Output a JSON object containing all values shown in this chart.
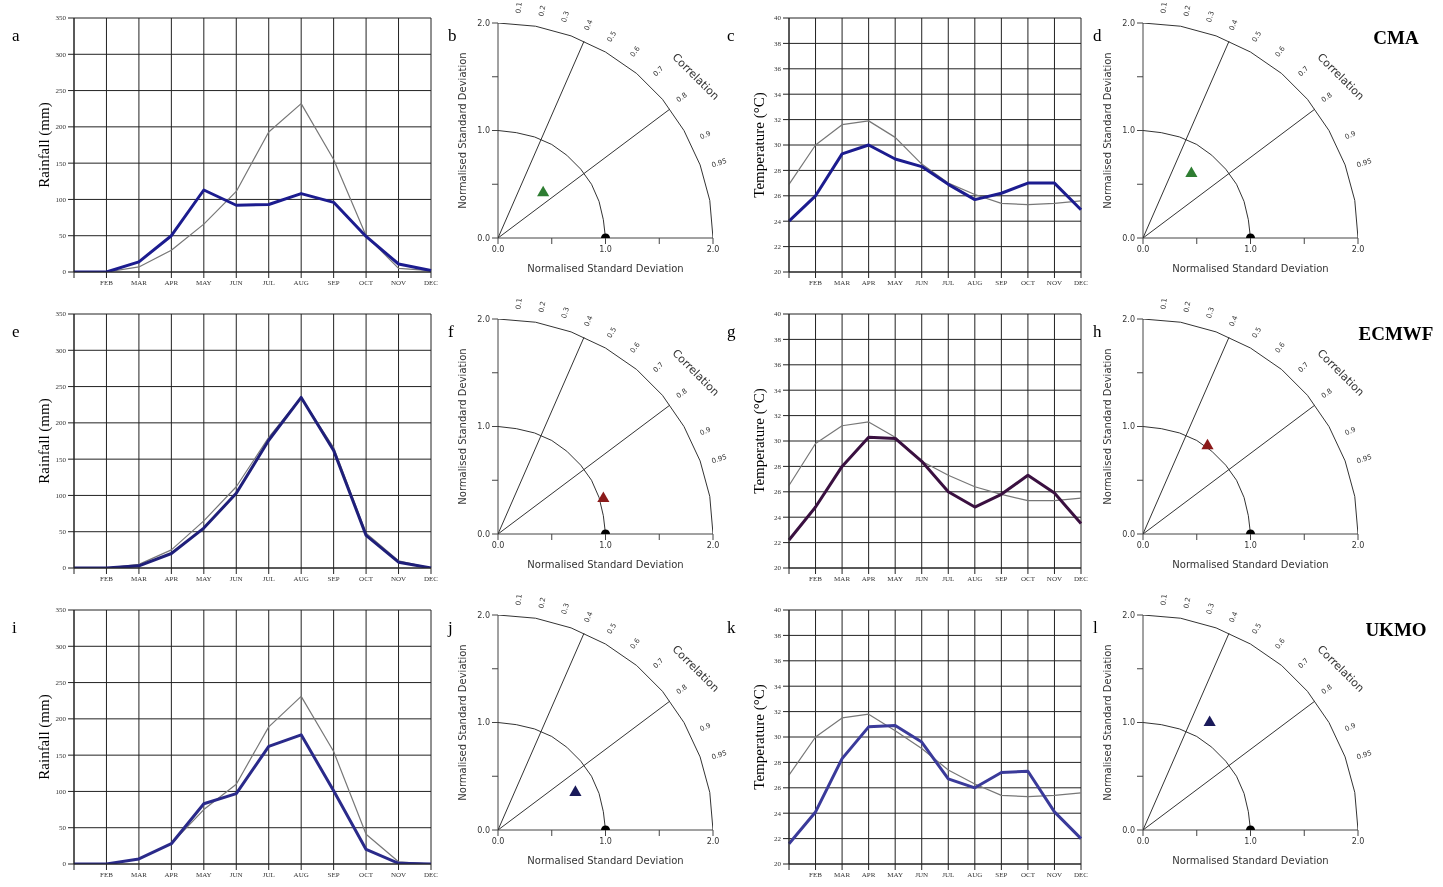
{
  "chart_data": [
    {
      "type": "line",
      "annotations": [
        "a"
      ],
      "ylabel": "Rainfall (mm)",
      "categories": [
        null,
        "FEB",
        "MAR",
        "APR",
        "MAY",
        "JUN",
        "JUL",
        "AUG",
        "SEP",
        "OCT",
        "NOV",
        "DEC"
      ],
      "ylim": [
        0,
        350
      ],
      "yticks": [
        0,
        50,
        100,
        150,
        200,
        250,
        300,
        350
      ],
      "grid": true,
      "series": [
        {
          "color": "#777777",
          "values": [
            0,
            0,
            7,
            30,
            66,
            111,
            193,
            232,
            155,
            50,
            5,
            2
          ]
        },
        {
          "color": "#1c1c8f",
          "values": [
            0,
            0,
            14,
            50,
            113,
            92,
            93,
            108,
            96,
            49,
            11,
            2
          ]
        }
      ]
    },
    {
      "type": "scatter",
      "annotations": [
        "b",
        "0.1",
        "0.2",
        "0.3",
        "0.4",
        "0.5",
        "0.6",
        "0.7",
        "0.8",
        "0.9",
        "0.95",
        "Correlation"
      ],
      "xlabel": "Normalised Standard Deviation",
      "ylabel": "Normalised Standard Deviation",
      "xlim": [
        0,
        2
      ],
      "ylim": [
        0,
        2
      ],
      "xticks": [
        {
          "value": 0,
          "label": "0.0"
        },
        {
          "value": 0.5,
          "label": null
        },
        {
          "value": 1,
          "label": "1.0"
        },
        {
          "value": 1.5,
          "label": null
        },
        {
          "value": 2,
          "label": "2.0"
        }
      ],
      "yticks": [
        {
          "value": 0,
          "label": "0.0"
        },
        {
          "value": 0.5,
          "label": null
        },
        {
          "value": 1,
          "label": "1.0"
        },
        {
          "value": 1.5,
          "label": null
        },
        {
          "value": 2,
          "label": "2.0"
        }
      ],
      "series": [
        {
          "type": "line",
          "color": "#333333",
          "x": [
            0,
            0.8
          ],
          "values": [
            0,
            1.83
          ]
        },
        {
          "type": "line",
          "color": "#333333",
          "x": [
            0,
            1.6
          ],
          "values": [
            0,
            1.2
          ]
        },
        {
          "type": "line",
          "color": "#333333",
          "x": [
            1,
            0.98,
            0.94,
            0.87,
            0.77,
            0.64,
            0.5,
            0.34,
            0.17,
            0
          ],
          "values": [
            0,
            0.17,
            0.34,
            0.5,
            0.64,
            0.77,
            0.87,
            0.94,
            0.98,
            1
          ]
        },
        {
          "type": "line",
          "color": "#333333",
          "x": [
            2,
            1.97,
            1.88,
            1.73,
            1.53,
            1.29,
            1,
            0.68,
            0.35,
            0
          ],
          "values": [
            0,
            0.35,
            0.68,
            1,
            1.29,
            1.53,
            1.73,
            1.88,
            1.97,
            2
          ]
        },
        {
          "color": "#2e7d32",
          "marker": "triangle",
          "x": [
            0.42
          ],
          "values": [
            0.42
          ]
        },
        {
          "color": "#000000",
          "marker": "circle",
          "x": [
            1.0
          ],
          "values": [
            0
          ]
        }
      ]
    },
    {
      "type": "line",
      "annotations": [
        "c"
      ],
      "ylabel": "Temperature (°C)",
      "categories": [
        null,
        "FEB",
        "MAR",
        "APR",
        "MAY",
        "JUN",
        "JUL",
        "AUG",
        "SEP",
        "OCT",
        "NOV",
        "DEC"
      ],
      "ylim": [
        20,
        40
      ],
      "yticks": [
        20,
        22,
        24,
        26,
        28,
        30,
        32,
        34,
        36,
        38,
        40
      ],
      "grid": true,
      "series": [
        {
          "color": "#777777",
          "values": [
            26.9,
            30,
            31.6,
            31.9,
            30.6,
            28.5,
            27,
            26.1,
            25.4,
            25.3,
            25.4,
            25.6
          ]
        },
        {
          "color": "#1c1c8f",
          "values": [
            24,
            26,
            29.3,
            30,
            28.9,
            28.3,
            26.9,
            25.7,
            26.2,
            27,
            27,
            24.9
          ]
        }
      ]
    },
    {
      "type": "scatter",
      "title": "CMA",
      "annotations": [
        "d",
        "0.1",
        "0.2",
        "0.3",
        "0.4",
        "0.5",
        "0.6",
        "0.7",
        "0.8",
        "0.9",
        "0.95",
        "Correlation"
      ],
      "xlabel": "Normalised Standard Deviation",
      "ylabel": "Normalised Standard Deviation",
      "xlim": [
        0,
        2
      ],
      "ylim": [
        0,
        2
      ],
      "xticks": [
        {
          "value": 0,
          "label": "0.0"
        },
        {
          "value": 0.5,
          "label": null
        },
        {
          "value": 1,
          "label": "1.0"
        },
        {
          "value": 1.5,
          "label": null
        },
        {
          "value": 2,
          "label": "2.0"
        }
      ],
      "yticks": [
        {
          "value": 0,
          "label": "0.0"
        },
        {
          "value": 0.5,
          "label": null
        },
        {
          "value": 1,
          "label": "1.0"
        },
        {
          "value": 1.5,
          "label": null
        },
        {
          "value": 2,
          "label": "2.0"
        }
      ],
      "series": [
        {
          "type": "line",
          "color": "#333333",
          "x": [
            0,
            0.8
          ],
          "values": [
            0,
            1.83
          ]
        },
        {
          "type": "line",
          "color": "#333333",
          "x": [
            0,
            1.6
          ],
          "values": [
            0,
            1.2
          ]
        },
        {
          "type": "line",
          "color": "#333333",
          "x": [
            1,
            0.98,
            0.94,
            0.87,
            0.77,
            0.64,
            0.5,
            0.34,
            0.17,
            0
          ],
          "values": [
            0,
            0.17,
            0.34,
            0.5,
            0.64,
            0.77,
            0.87,
            0.94,
            0.98,
            1
          ]
        },
        {
          "type": "line",
          "color": "#333333",
          "x": [
            2,
            1.97,
            1.88,
            1.73,
            1.53,
            1.29,
            1,
            0.68,
            0.35,
            0
          ],
          "values": [
            0,
            0.35,
            0.68,
            1,
            1.29,
            1.53,
            1.73,
            1.88,
            1.97,
            2
          ]
        },
        {
          "color": "#2e7d32",
          "marker": "triangle",
          "x": [
            0.45
          ],
          "values": [
            0.6
          ]
        },
        {
          "color": "#000000",
          "marker": "circle",
          "x": [
            1.0
          ],
          "values": [
            0
          ]
        }
      ]
    },
    {
      "type": "line",
      "annotations": [
        "e"
      ],
      "ylabel": "Rainfall (mm)",
      "categories": [
        null,
        "FEB",
        "MAR",
        "APR",
        "MAY",
        "JUN",
        "JUL",
        "AUG",
        "SEP",
        "OCT",
        "NOV",
        "DEC"
      ],
      "ylim": [
        0,
        350
      ],
      "yticks": [
        0,
        50,
        100,
        150,
        200,
        250,
        300,
        350
      ],
      "grid": true,
      "series": [
        {
          "color": "#777777",
          "values": [
            0,
            0,
            5,
            25,
            65,
            112,
            180,
            235,
            166,
            48,
            10,
            0
          ]
        },
        {
          "color": "#1f1f7a",
          "values": [
            0,
            0,
            3,
            20,
            55,
            103,
            176,
            235,
            162,
            45,
            8,
            0
          ]
        }
      ]
    },
    {
      "type": "scatter",
      "annotations": [
        "f",
        "0.1",
        "0.2",
        "0.3",
        "0.4",
        "0.5",
        "0.6",
        "0.7",
        "0.8",
        "0.9",
        "0.95",
        "Correlation"
      ],
      "xlabel": "Normalised Standard Deviation",
      "ylabel": "Normalised Standard Deviation",
      "xlim": [
        0,
        2
      ],
      "ylim": [
        0,
        2
      ],
      "xticks": [
        {
          "value": 0,
          "label": "0.0"
        },
        {
          "value": 0.5,
          "label": null
        },
        {
          "value": 1,
          "label": "1.0"
        },
        {
          "value": 1.5,
          "label": null
        },
        {
          "value": 2,
          "label": "2.0"
        }
      ],
      "yticks": [
        {
          "value": 0,
          "label": "0.0"
        },
        {
          "value": 0.5,
          "label": null
        },
        {
          "value": 1,
          "label": "1.0"
        },
        {
          "value": 1.5,
          "label": null
        },
        {
          "value": 2,
          "label": "2.0"
        }
      ],
      "series": [
        {
          "type": "line",
          "color": "#333333",
          "x": [
            0,
            0.8
          ],
          "values": [
            0,
            1.83
          ]
        },
        {
          "type": "line",
          "color": "#333333",
          "x": [
            0,
            1.6
          ],
          "values": [
            0,
            1.2
          ]
        },
        {
          "type": "line",
          "color": "#333333",
          "x": [
            1,
            0.98,
            0.94,
            0.87,
            0.77,
            0.64,
            0.5,
            0.34,
            0.17,
            0
          ],
          "values": [
            0,
            0.17,
            0.34,
            0.5,
            0.64,
            0.77,
            0.87,
            0.94,
            0.98,
            1
          ]
        },
        {
          "type": "line",
          "color": "#333333",
          "x": [
            2,
            1.97,
            1.88,
            1.73,
            1.53,
            1.29,
            1,
            0.68,
            0.35,
            0
          ],
          "values": [
            0,
            0.35,
            0.68,
            1,
            1.29,
            1.53,
            1.73,
            1.88,
            1.97,
            2
          ]
        },
        {
          "color": "#8b1a1a",
          "marker": "triangle",
          "x": [
            0.98
          ],
          "values": [
            0.33
          ]
        },
        {
          "color": "#000000",
          "marker": "circle",
          "x": [
            1.0
          ],
          "values": [
            0
          ]
        }
      ]
    },
    {
      "type": "line",
      "annotations": [
        "g"
      ],
      "ylabel": "Temperature (°C)",
      "categories": [
        null,
        "FEB",
        "MAR",
        "APR",
        "MAY",
        "JUN",
        "JUL",
        "AUG",
        "SEP",
        "OCT",
        "NOV",
        "DEC"
      ],
      "ylim": [
        20,
        40
      ],
      "yticks": [
        20,
        22,
        24,
        26,
        28,
        30,
        32,
        34,
        36,
        38,
        40
      ],
      "grid": true,
      "series": [
        {
          "color": "#777777",
          "values": [
            26.5,
            29.8,
            31.2,
            31.5,
            30.3,
            28.4,
            27.3,
            26.4,
            25.8,
            25.3,
            25.3,
            25.5
          ]
        },
        {
          "color": "#3a1040",
          "values": [
            22.2,
            24.8,
            28,
            30.3,
            30.2,
            28.4,
            26,
            24.8,
            25.8,
            27.3,
            25.9,
            23.5
          ]
        }
      ]
    },
    {
      "type": "scatter",
      "title": "ECMWF",
      "annotations": [
        "h",
        "0.1",
        "0.2",
        "0.3",
        "0.4",
        "0.5",
        "0.6",
        "0.7",
        "0.8",
        "0.9",
        "0.95",
        "Correlation"
      ],
      "xlabel": "Normalised Standard Deviation",
      "ylabel": "Normalised Standard Deviation",
      "xlim": [
        0,
        2
      ],
      "ylim": [
        0,
        2
      ],
      "xticks": [
        {
          "value": 0,
          "label": "0.0"
        },
        {
          "value": 0.5,
          "label": null
        },
        {
          "value": 1,
          "label": "1.0"
        },
        {
          "value": 1.5,
          "label": null
        },
        {
          "value": 2,
          "label": "2.0"
        }
      ],
      "yticks": [
        {
          "value": 0,
          "label": "0.0"
        },
        {
          "value": 0.5,
          "label": null
        },
        {
          "value": 1,
          "label": "1.0"
        },
        {
          "value": 1.5,
          "label": null
        },
        {
          "value": 2,
          "label": "2.0"
        }
      ],
      "series": [
        {
          "type": "line",
          "color": "#333333",
          "x": [
            0,
            0.8
          ],
          "values": [
            0,
            1.83
          ]
        },
        {
          "type": "line",
          "color": "#333333",
          "x": [
            0,
            1.6
          ],
          "values": [
            0,
            1.2
          ]
        },
        {
          "type": "line",
          "color": "#333333",
          "x": [
            1,
            0.98,
            0.94,
            0.87,
            0.77,
            0.64,
            0.5,
            0.34,
            0.17,
            0
          ],
          "values": [
            0,
            0.17,
            0.34,
            0.5,
            0.64,
            0.77,
            0.87,
            0.94,
            0.98,
            1
          ]
        },
        {
          "type": "line",
          "color": "#333333",
          "x": [
            2,
            1.97,
            1.88,
            1.73,
            1.53,
            1.29,
            1,
            0.68,
            0.35,
            0
          ],
          "values": [
            0,
            0.35,
            0.68,
            1,
            1.29,
            1.53,
            1.73,
            1.88,
            1.97,
            2
          ]
        },
        {
          "color": "#8b1a1a",
          "marker": "triangle",
          "x": [
            0.6
          ],
          "values": [
            0.82
          ]
        },
        {
          "color": "#000000",
          "marker": "circle",
          "x": [
            1.0
          ],
          "values": [
            0
          ]
        }
      ]
    },
    {
      "type": "line",
      "annotations": [
        "i"
      ],
      "ylabel": "Rainfall (mm)",
      "categories": [
        null,
        "FEB",
        "MAR",
        "APR",
        "MAY",
        "JUN",
        "JUL",
        "AUG",
        "SEP",
        "OCT",
        "NOV",
        "DEC"
      ],
      "ylim": [
        0,
        350
      ],
      "yticks": [
        0,
        50,
        100,
        150,
        200,
        250,
        300,
        350
      ],
      "grid": true,
      "series": [
        {
          "color": "#777777",
          "values": [
            0,
            0,
            7,
            28,
            75,
            110,
            189,
            231,
            155,
            41,
            3,
            0
          ]
        },
        {
          "color": "#2a2a8a",
          "values": [
            0,
            0,
            7,
            28,
            83,
            97,
            162,
            178,
            101,
            20,
            1,
            0
          ]
        }
      ]
    },
    {
      "type": "scatter",
      "annotations": [
        "j",
        "0.1",
        "0.2",
        "0.3",
        "0.4",
        "0.5",
        "0.6",
        "0.7",
        "0.8",
        "0.9",
        "0.95",
        "Correlation"
      ],
      "xlabel": "Normalised Standard Deviation",
      "ylabel": "Normalised Standard Deviation",
      "xlim": [
        0,
        2
      ],
      "ylim": [
        0,
        2
      ],
      "xticks": [
        {
          "value": 0,
          "label": "0.0"
        },
        {
          "value": 0.5,
          "label": null
        },
        {
          "value": 1,
          "label": "1.0"
        },
        {
          "value": 1.5,
          "label": null
        },
        {
          "value": 2,
          "label": "2.0"
        }
      ],
      "yticks": [
        {
          "value": 0,
          "label": "0.0"
        },
        {
          "value": 0.5,
          "label": null
        },
        {
          "value": 1,
          "label": "1.0"
        },
        {
          "value": 1.5,
          "label": null
        },
        {
          "value": 2,
          "label": "2.0"
        }
      ],
      "series": [
        {
          "type": "line",
          "color": "#333333",
          "x": [
            0,
            0.8
          ],
          "values": [
            0,
            1.83
          ]
        },
        {
          "type": "line",
          "color": "#333333",
          "x": [
            0,
            1.6
          ],
          "values": [
            0,
            1.2
          ]
        },
        {
          "type": "line",
          "color": "#333333",
          "x": [
            1,
            0.98,
            0.94,
            0.87,
            0.77,
            0.64,
            0.5,
            0.34,
            0.17,
            0
          ],
          "values": [
            0,
            0.17,
            0.34,
            0.5,
            0.64,
            0.77,
            0.87,
            0.94,
            0.98,
            1
          ]
        },
        {
          "type": "line",
          "color": "#333333",
          "x": [
            2,
            1.97,
            1.88,
            1.73,
            1.53,
            1.29,
            1,
            0.68,
            0.35,
            0
          ],
          "values": [
            0,
            0.35,
            0.68,
            1,
            1.29,
            1.53,
            1.73,
            1.88,
            1.97,
            2
          ]
        },
        {
          "color": "#1a1a5a",
          "marker": "triangle",
          "x": [
            0.72
          ],
          "values": [
            0.35
          ]
        },
        {
          "color": "#000000",
          "marker": "circle",
          "x": [
            1.0
          ],
          "values": [
            0
          ]
        }
      ]
    },
    {
      "type": "line",
      "annotations": [
        "k"
      ],
      "ylabel": "Temperature (°C)",
      "categories": [
        null,
        "FEB",
        "MAR",
        "APR",
        "MAY",
        "JUN",
        "JUL",
        "AUG",
        "SEP",
        "OCT",
        "NOV",
        "DEC"
      ],
      "ylim": [
        20,
        40
      ],
      "yticks": [
        20,
        22,
        24,
        26,
        28,
        30,
        32,
        34,
        36,
        38,
        40
      ],
      "grid": true,
      "series": [
        {
          "color": "#777777",
          "values": [
            27,
            30,
            31.5,
            31.8,
            30.5,
            29.1,
            27.4,
            26.3,
            25.4,
            25.3,
            25.4,
            25.6
          ]
        },
        {
          "color": "#3a3a9a",
          "values": [
            21.6,
            24.1,
            28.3,
            30.8,
            30.9,
            29.6,
            26.7,
            26,
            27.2,
            27.3,
            24.1,
            22
          ]
        }
      ]
    },
    {
      "type": "scatter",
      "title": "UKMO",
      "annotations": [
        "l",
        "0.1",
        "0.2",
        "0.3",
        "0.4",
        "0.5",
        "0.6",
        "0.7",
        "0.8",
        "0.9",
        "0.95",
        "Correlation"
      ],
      "xlabel": "Normalised Standard Deviation",
      "ylabel": "Normalised Standard Deviation",
      "xlim": [
        0,
        2
      ],
      "ylim": [
        0,
        2
      ],
      "xticks": [
        {
          "value": 0,
          "label": "0.0"
        },
        {
          "value": 0.5,
          "label": null
        },
        {
          "value": 1,
          "label": "1.0"
        },
        {
          "value": 1.5,
          "label": null
        },
        {
          "value": 2,
          "label": "2.0"
        }
      ],
      "yticks": [
        {
          "value": 0,
          "label": "0.0"
        },
        {
          "value": 0.5,
          "label": null
        },
        {
          "value": 1,
          "label": "1.0"
        },
        {
          "value": 1.5,
          "label": null
        },
        {
          "value": 2,
          "label": "2.0"
        }
      ],
      "series": [
        {
          "type": "line",
          "color": "#333333",
          "x": [
            0,
            0.8
          ],
          "values": [
            0,
            1.83
          ]
        },
        {
          "type": "line",
          "color": "#333333",
          "x": [
            0,
            1.6
          ],
          "values": [
            0,
            1.2
          ]
        },
        {
          "type": "line",
          "color": "#333333",
          "x": [
            1,
            0.98,
            0.94,
            0.87,
            0.77,
            0.64,
            0.5,
            0.34,
            0.17,
            0
          ],
          "values": [
            0,
            0.17,
            0.34,
            0.5,
            0.64,
            0.77,
            0.87,
            0.94,
            0.98,
            1
          ]
        },
        {
          "type": "line",
          "color": "#333333",
          "x": [
            2,
            1.97,
            1.88,
            1.73,
            1.53,
            1.29,
            1,
            0.68,
            0.35,
            0
          ],
          "values": [
            0,
            0.35,
            0.68,
            1,
            1.29,
            1.53,
            1.73,
            1.88,
            1.97,
            2
          ]
        },
        {
          "color": "#1a1a5a",
          "marker": "triangle",
          "x": [
            0.62
          ],
          "values": [
            1.0
          ]
        },
        {
          "color": "#000000",
          "marker": "circle",
          "x": [
            1.0
          ],
          "values": [
            0
          ]
        }
      ]
    }
  ]
}
